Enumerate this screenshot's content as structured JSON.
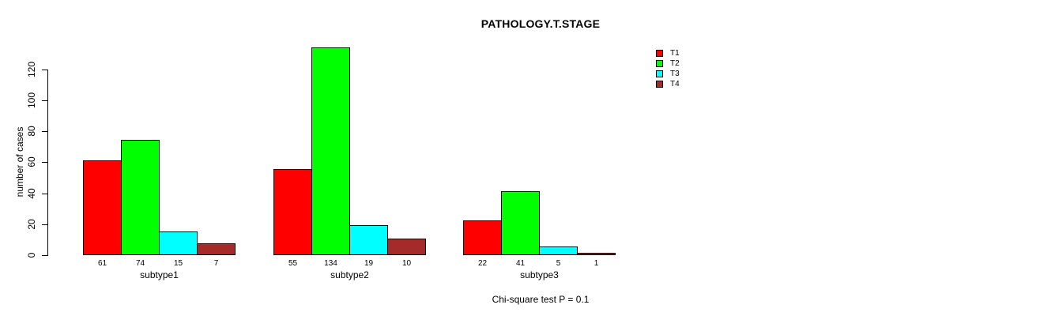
{
  "title": "PATHOLOGY.T.STAGE",
  "footer": "Chi-square test P = 0.1",
  "y_axis": {
    "label": "number of cases",
    "ticks": [
      0,
      20,
      40,
      60,
      80,
      100,
      120
    ]
  },
  "legend": {
    "position": "top-right",
    "entries": [
      {
        "label": "T1",
        "color": "#FF0000"
      },
      {
        "label": "T2",
        "color": "#00FF00"
      },
      {
        "label": "T3",
        "color": "#00FFFF"
      },
      {
        "label": "T4",
        "color": "#A52A2A"
      }
    ]
  },
  "chart_data": {
    "type": "bar",
    "title": "PATHOLOGY.T.STAGE",
    "xlabel": "",
    "ylabel": "number of cases",
    "categories": [
      "subtype1",
      "subtype2",
      "subtype3"
    ],
    "series": [
      {
        "name": "T1",
        "color": "#FF0000",
        "values": [
          61,
          55,
          22
        ]
      },
      {
        "name": "T2",
        "color": "#00FF00",
        "values": [
          74,
          134,
          41
        ]
      },
      {
        "name": "T3",
        "color": "#00FFFF",
        "values": [
          15,
          19,
          5
        ]
      },
      {
        "name": "T4",
        "color": "#A52A2A",
        "values": [
          7,
          10,
          1
        ]
      }
    ],
    "bar_value_labels": [
      [
        61,
        74,
        15,
        7
      ],
      [
        55,
        134,
        19,
        10
      ],
      [
        22,
        41,
        5,
        1
      ]
    ],
    "annotation": "Chi-square test P = 0.1",
    "ylim": [
      0,
      134
    ],
    "yticks": [
      0,
      20,
      40,
      60,
      80,
      100,
      120
    ],
    "grid": false,
    "legend_position": "right",
    "bar_border_color": "#000000"
  }
}
